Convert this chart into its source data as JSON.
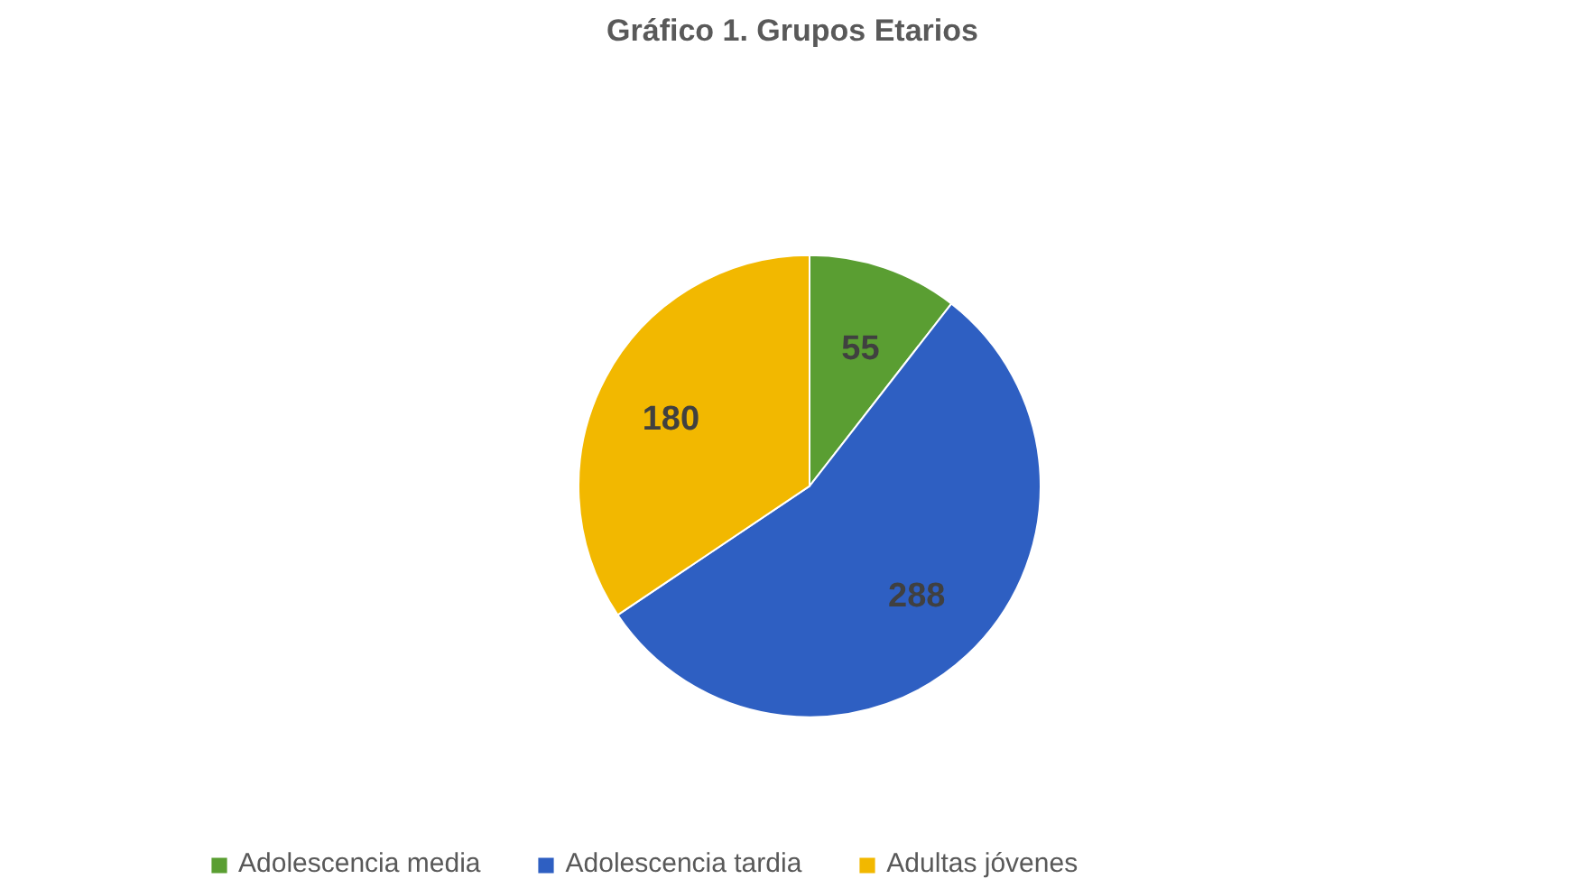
{
  "chart_data": {
    "type": "pie",
    "title": "Gráfico 1. Grupos Etarios",
    "categories": [
      "Adolescencia media",
      "Adolescencia tardia",
      "Adultas jóvenes"
    ],
    "values": [
      55,
      288,
      180
    ],
    "colors": [
      "#5a9e32",
      "#2e5fc2",
      "#f2b800"
    ],
    "data_labels": true,
    "legend": "bottom"
  }
}
